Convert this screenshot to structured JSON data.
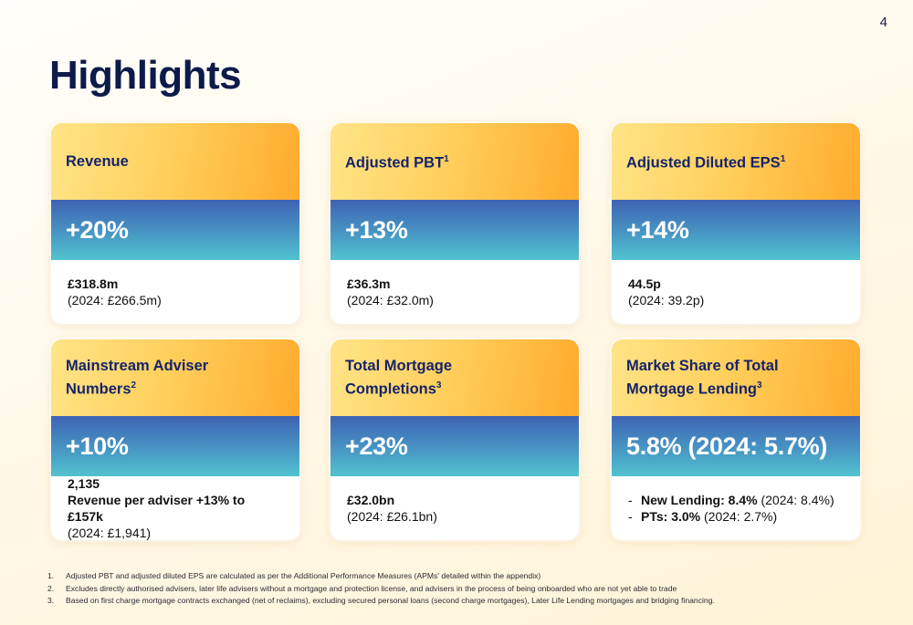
{
  "page": {
    "number": "4",
    "title": "Highlights"
  },
  "cards": [
    {
      "title": "Revenue",
      "title_sup": "",
      "metric": "+20%",
      "value": "£318.8m",
      "comparison": "(2024: £266.5m)"
    },
    {
      "title": "Adjusted PBT",
      "title_sup": "1",
      "metric": "+13%",
      "value": "£36.3m",
      "comparison": "(2024: £32.0m)"
    },
    {
      "title": "Adjusted Diluted EPS",
      "title_sup": "1",
      "metric": "+14%",
      "value": "44.5p",
      "comparison": "(2024: 39.2p)"
    },
    {
      "title_line1": "Mainstream Adviser",
      "title_line2": "Numbers",
      "title_sup": "2",
      "metric": "+10%",
      "value": "2,135",
      "value_line2": "Revenue per adviser +13% to £157k",
      "comparison": "(2024: £1,941)"
    },
    {
      "title_line1": "Total Mortgage",
      "title_line2": "Completions",
      "title_sup": "3",
      "metric": "+23%",
      "value": "£32.0bn",
      "comparison": "(2024: £26.1bn)"
    },
    {
      "title_line1": "Market Share of Total",
      "title_line2": "Mortgage Lending",
      "title_sup": "3",
      "metric": "5.8% (2024: 5.7%)",
      "bullets": [
        {
          "dash": "-",
          "label": "New Lending: 8.4%",
          "detail": " (2024: 8.4%)"
        },
        {
          "dash": "-",
          "label": "PTs: 3.0%",
          "detail": " (2024: 2.7%)"
        }
      ]
    }
  ],
  "footnotes": [
    {
      "num": "1.",
      "text": "Adjusted PBT and adjusted diluted EPS are calculated as per the Additional Performance Measures (APMs' detailed within the appendix)"
    },
    {
      "num": "2.",
      "text": "Excludes directly authorised advisers, later life advisers without a mortgage and protection license, and advisers in the process of being onboarded who are not yet able to trade"
    },
    {
      "num": "3.",
      "text": "Based on first charge mortgage contracts exchanged (net of reclaims), excluding secured personal loans (second charge mortgages), Later Life Lending mortgages and bridging financing."
    }
  ]
}
